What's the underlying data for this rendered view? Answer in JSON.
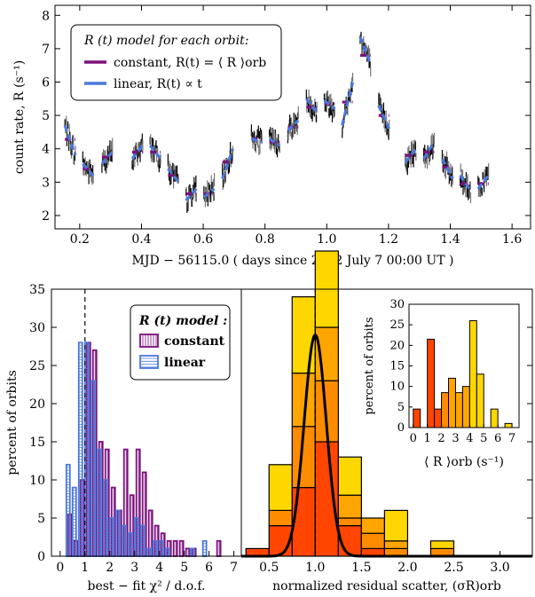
{
  "chart_data": [
    {
      "id": "top",
      "type": "scatter",
      "xlabel": "MJD − 56115.0 ( days since 2012 July 7 00:00 UT )",
      "ylabel": "count rate, R (s⁻¹)",
      "xlim": [
        0.12,
        1.66
      ],
      "ylim": [
        1.6,
        8.3
      ],
      "xticks": [
        "0.2",
        "0.4",
        "0.6",
        "0.8",
        "1.0",
        "1.2",
        "1.4",
        "1.6"
      ],
      "yticks": [
        "2",
        "3",
        "4",
        "5",
        "6",
        "7",
        "8"
      ],
      "legend": {
        "title": "R (t) model for each orbit:",
        "entries": [
          {
            "label": "constant, R(t) = ⟨ R ⟩orb",
            "color": "#7b117d"
          },
          {
            "label": "linear, R(t) ∝ t",
            "color": "#4a78db"
          }
        ]
      },
      "orbits": [
        {
          "t0": 0.152,
          "t1": 0.186,
          "const": 4.28,
          "a": 4.7,
          "b": 3.8
        },
        {
          "t0": 0.21,
          "t1": 0.244,
          "const": 3.4,
          "a": 3.55,
          "b": 3.2
        },
        {
          "t0": 0.272,
          "t1": 0.306,
          "const": 3.75,
          "a": 3.55,
          "b": 3.9
        },
        {
          "t0": 0.37,
          "t1": 0.404,
          "const": 3.9,
          "a": 3.7,
          "b": 4.1
        },
        {
          "t0": 0.428,
          "t1": 0.462,
          "const": 3.9,
          "a": 4.1,
          "b": 3.7
        },
        {
          "t0": 0.486,
          "t1": 0.52,
          "const": 3.2,
          "a": 3.4,
          "b": 3.0
        },
        {
          "t0": 0.544,
          "t1": 0.578,
          "const": 2.65,
          "a": 2.45,
          "b": 2.8
        },
        {
          "t0": 0.602,
          "t1": 0.636,
          "const": 2.65,
          "a": 2.55,
          "b": 2.8
        },
        {
          "t0": 0.662,
          "t1": 0.696,
          "const": 3.6,
          "a": 3.1,
          "b": 4.0
        },
        {
          "t0": 0.756,
          "t1": 0.79,
          "const": 4.3,
          "a": 4.3,
          "b": 4.2
        },
        {
          "t0": 0.814,
          "t1": 0.848,
          "const": 4.2,
          "a": 4.3,
          "b": 4.1
        },
        {
          "t0": 0.874,
          "t1": 0.908,
          "const": 4.65,
          "a": 4.55,
          "b": 4.85
        },
        {
          "t0": 0.934,
          "t1": 0.968,
          "const": 5.25,
          "a": 5.5,
          "b": 5.1
        },
        {
          "t0": 0.992,
          "t1": 1.026,
          "const": 5.35,
          "a": 5.45,
          "b": 5.2
        },
        {
          "t0": 1.05,
          "t1": 1.084,
          "const": 5.4,
          "a": 4.7,
          "b": 6.0
        },
        {
          "t0": 1.108,
          "t1": 1.142,
          "const": 6.8,
          "a": 7.35,
          "b": 6.55
        },
        {
          "t0": 1.168,
          "t1": 1.202,
          "const": 5.0,
          "a": 5.3,
          "b": 4.6
        },
        {
          "t0": 1.255,
          "t1": 1.289,
          "const": 3.8,
          "a": 3.6,
          "b": 4.0
        },
        {
          "t0": 1.314,
          "t1": 1.348,
          "const": 3.9,
          "a": 3.7,
          "b": 4.2
        },
        {
          "t0": 1.374,
          "t1": 1.408,
          "const": 3.45,
          "a": 3.7,
          "b": 3.1
        },
        {
          "t0": 1.432,
          "t1": 1.466,
          "const": 2.95,
          "a": 3.2,
          "b": 2.75
        },
        {
          "t0": 1.49,
          "t1": 1.524,
          "const": 2.95,
          "a": 2.8,
          "b": 3.2
        }
      ]
    },
    {
      "id": "bottom-left",
      "type": "bar",
      "xlabel": "best − fit χ² / d.o.f.",
      "ylabel": "percent of orbits",
      "xlim": [
        -0.35,
        7.3
      ],
      "ylim": [
        0,
        35
      ],
      "xticks": [
        "0",
        "1",
        "2",
        "3",
        "4",
        "5",
        "6",
        "7"
      ],
      "yticks": [
        "0",
        "5",
        "10",
        "15",
        "20",
        "25",
        "30",
        "35"
      ],
      "reference_line_x": 1.0,
      "bin_width": 0.25,
      "bin_starts": [
        0.25,
        0.5,
        0.75,
        1.0,
        1.25,
        1.5,
        1.75,
        2.0,
        2.25,
        2.5,
        2.75,
        3.0,
        3.25,
        3.5,
        3.75,
        4.0,
        4.25,
        4.5,
        4.75,
        5.0,
        5.25,
        5.5,
        5.75,
        6.0,
        6.25,
        6.5,
        6.75
      ],
      "legend": {
        "title": "R (t) model :",
        "entries": [
          {
            "label": "constant",
            "color": "#7b117d"
          },
          {
            "label": "linear",
            "color": "#4a78db"
          }
        ]
      },
      "series": [
        {
          "name": "constant",
          "values": [
            5.5,
            2.0,
            10.0,
            28.0,
            27.0,
            15.0,
            14.0,
            9.0,
            6.0,
            14.0,
            8.0,
            14.0,
            11.0,
            6.0,
            4.0,
            3.0,
            2.0,
            2.0,
            2.0,
            1.0,
            1.0,
            0.0,
            0.0,
            0.0,
            2.0,
            0.0,
            0.0
          ]
        },
        {
          "name": "linear",
          "values": [
            12.0,
            9.0,
            28.0,
            28.0,
            23.0,
            14.0,
            10.0,
            5.0,
            6.0,
            4.0,
            3.0,
            5.0,
            4.0,
            1.0,
            2.0,
            2.0,
            1.0,
            0.0,
            0.0,
            0.0,
            1.0,
            0.0,
            2.0,
            0.0,
            0.0,
            0.0,
            0.0
          ]
        }
      ]
    },
    {
      "id": "bottom-right",
      "type": "bar",
      "xlabel": "normalized residual scatter, (σR)orb",
      "ylabel": "",
      "xlim": [
        0.2,
        3.35
      ],
      "ylim": [
        0,
        35
      ],
      "xticks": [
        "0.5",
        "1.0",
        "1.5",
        "2.0",
        "2.5",
        "3.0"
      ],
      "reference_line_x": 1.0,
      "bin_width": 0.25,
      "bin_starts": [
        0.25,
        0.5,
        0.75,
        1.0,
        1.25,
        1.5,
        1.75,
        2.0,
        2.25,
        2.5,
        2.75,
        3.0
      ],
      "stack_colors": [
        "#ff4500",
        "#ff8c00",
        "#ffa500",
        "#ffd700"
      ],
      "stack": [
        [
          1,
          0,
          0,
          0
        ],
        [
          4,
          2,
          0,
          6
        ],
        [
          9,
          8,
          7,
          10
        ],
        [
          15,
          8,
          7,
          10
        ],
        [
          4,
          1,
          3,
          5
        ],
        [
          1,
          2,
          2,
          0
        ],
        [
          0,
          1,
          1,
          4
        ],
        [
          0,
          0,
          0,
          0
        ],
        [
          0,
          1,
          0,
          1
        ],
        [
          0,
          0,
          0,
          0
        ],
        [
          0,
          0,
          0,
          0
        ],
        [
          0,
          0,
          0,
          0
        ]
      ],
      "gaussian": {
        "mean": 1.0,
        "sigma": 0.12,
        "peak": 29.0
      }
    },
    {
      "id": "inset",
      "type": "bar",
      "xlabel": "⟨ R ⟩orb (s⁻¹)",
      "ylabel": "percent of orbits",
      "xlim": [
        -0.3,
        7.5
      ],
      "ylim": [
        0,
        30
      ],
      "xticks": [
        "0",
        "1",
        "2",
        "3",
        "4",
        "5",
        "6",
        "7"
      ],
      "yticks": [
        "0",
        "5",
        "10",
        "15",
        "20",
        "25",
        "30"
      ],
      "bin_width": 0.5,
      "bins": [
        {
          "x": 0.0,
          "v": 4.5,
          "color": "#ff4500"
        },
        {
          "x": 0.5,
          "v": 0.0,
          "color": "#ff4500"
        },
        {
          "x": 1.0,
          "v": 21.5,
          "color": "#ff4500"
        },
        {
          "x": 1.5,
          "v": 4.5,
          "color": "#ff4500"
        },
        {
          "x": 2.0,
          "v": 8.5,
          "color": "#ff8c00"
        },
        {
          "x": 2.5,
          "v": 12.0,
          "color": "#ffa500"
        },
        {
          "x": 3.0,
          "v": 8.5,
          "color": "#ffa500"
        },
        {
          "x": 3.5,
          "v": 10.0,
          "color": "#ffa500"
        },
        {
          "x": 4.0,
          "v": 26.0,
          "color": "#ffd700"
        },
        {
          "x": 4.5,
          "v": 13.0,
          "color": "#ffd700"
        },
        {
          "x": 5.0,
          "v": 0.0,
          "color": "#ffd700"
        },
        {
          "x": 5.5,
          "v": 4.5,
          "color": "#ffd700"
        },
        {
          "x": 6.0,
          "v": 0.0,
          "color": "#ffd700"
        },
        {
          "x": 6.5,
          "v": 1.0,
          "color": "#ffd700"
        }
      ]
    }
  ]
}
